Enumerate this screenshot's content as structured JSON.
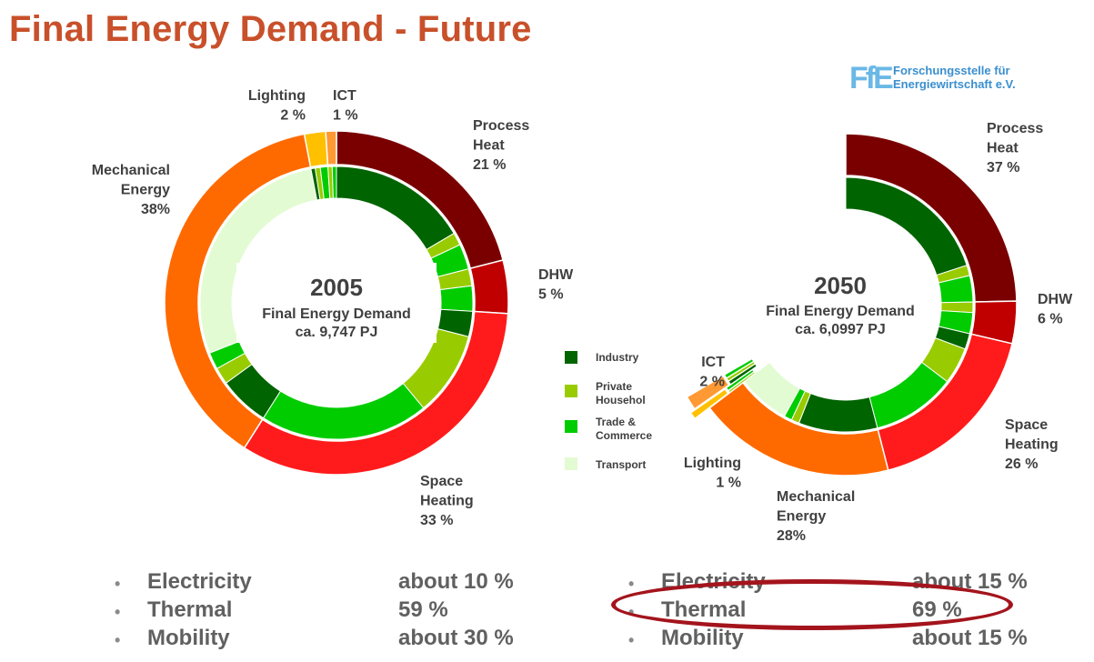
{
  "title": "Final Energy Demand - Future",
  "logo": {
    "mark": "FfE",
    "line1": "Forschungsstelle für",
    "line2": "Energiewirtschaft e.V."
  },
  "colors": {
    "process_heat": "#7a0000",
    "dhw": "#c00000",
    "space_heating": "#ff1b1b",
    "mechanical": "#ff6a00",
    "lighting": "#ffc000",
    "ict": "#ff9933",
    "industry": "#006400",
    "private": "#99cc00",
    "trade": "#00cc00",
    "transport": "#e3fbd3"
  },
  "legend": [
    {
      "label": "Industry",
      "color_key": "industry"
    },
    {
      "label": "Private\nHousehol",
      "color_key": "private"
    },
    {
      "label": "Trade &\nCommerce",
      "color_key": "trade"
    },
    {
      "label": "Transport",
      "color_key": "transport"
    }
  ],
  "chart_data": [
    {
      "type": "donut",
      "year": "2005",
      "center_line1": "Final Energy Demand",
      "center_line2": "ca. 9,747 PJ",
      "outer": [
        {
          "name": "Process Heat",
          "value": 21,
          "label": [
            "Process",
            "Heat",
            "21 %"
          ]
        },
        {
          "name": "DHW",
          "value": 5,
          "label": [
            "DHW",
            "5 %"
          ]
        },
        {
          "name": "Space Heating",
          "value": 33,
          "label": [
            "Space",
            "Heating",
            "33 %"
          ]
        },
        {
          "name": "Mechanical Energy",
          "value": 38,
          "label": [
            "Mechanical",
            "Energy",
            "38%"
          ]
        },
        {
          "name": "Lighting",
          "value": 2,
          "label": [
            "Lighting",
            "2 %"
          ]
        },
        {
          "name": "ICT",
          "value": 1,
          "label": [
            "ICT",
            "1 %"
          ]
        }
      ],
      "inner": [
        {
          "group": "Process Heat",
          "sector": "industry",
          "value": 16.5
        },
        {
          "group": "Process Heat",
          "sector": "private",
          "value": 1.5
        },
        {
          "group": "Process Heat",
          "sector": "trade",
          "value": 3
        },
        {
          "group": "DHW",
          "sector": "private",
          "value": 2
        },
        {
          "group": "DHW",
          "sector": "trade",
          "value": 3
        },
        {
          "group": "Space Heating",
          "sector": "industry",
          "value": 3
        },
        {
          "group": "Space Heating",
          "sector": "private",
          "value": 10
        },
        {
          "group": "Space Heating",
          "sector": "trade",
          "value": 20
        },
        {
          "group": "Mechanical Energy",
          "sector": "industry",
          "value": 6
        },
        {
          "group": "Mechanical Energy",
          "sector": "private",
          "value": 2
        },
        {
          "group": "Mechanical Energy",
          "sector": "trade",
          "value": 2
        },
        {
          "group": "Mechanical Energy",
          "sector": "transport",
          "value": 28
        },
        {
          "group": "Lighting",
          "sector": "industry",
          "value": 0.5
        },
        {
          "group": "Lighting",
          "sector": "private",
          "value": 0.6
        },
        {
          "group": "Lighting",
          "sector": "trade",
          "value": 0.9
        },
        {
          "group": "ICT",
          "sector": "private",
          "value": 0.5
        },
        {
          "group": "ICT",
          "sector": "trade",
          "value": 0.5
        }
      ]
    },
    {
      "type": "donut",
      "year": "2050",
      "center_line1": "Final Energy Demand",
      "center_line2": "ca. 6,0997 PJ",
      "outer": [
        {
          "name": "Process Heat",
          "value": 37,
          "label": [
            "Process",
            "Heat",
            "37 %"
          ]
        },
        {
          "name": "DHW",
          "value": 6,
          "label": [
            "DHW",
            "6 %"
          ]
        },
        {
          "name": "Space Heating",
          "value": 26,
          "label": [
            "Space",
            "Heating",
            "26 %"
          ]
        },
        {
          "name": "Mechanical Energy",
          "value": 28,
          "label": [
            "Mechanical",
            "Energy",
            "28%"
          ]
        },
        {
          "name": "Lighting",
          "value": 1,
          "label": [
            "Lighting",
            "1 %"
          ]
        },
        {
          "name": "ICT",
          "value": 2,
          "label": [
            "ICT",
            "2 %"
          ]
        }
      ],
      "inner": [
        {
          "group": "Process Heat",
          "sector": "industry",
          "value": 30
        },
        {
          "group": "Process Heat",
          "sector": "private",
          "value": 2
        },
        {
          "group": "Process Heat",
          "sector": "trade",
          "value": 5
        },
        {
          "group": "DHW",
          "sector": "private",
          "value": 2
        },
        {
          "group": "DHW",
          "sector": "trade",
          "value": 4
        },
        {
          "group": "Space Heating",
          "sector": "industry",
          "value": 3
        },
        {
          "group": "Space Heating",
          "sector": "private",
          "value": 7
        },
        {
          "group": "Space Heating",
          "sector": "trade",
          "value": 16
        },
        {
          "group": "Mechanical Energy",
          "sector": "industry",
          "value": 15
        },
        {
          "group": "Mechanical Energy",
          "sector": "private",
          "value": 1.5
        },
        {
          "group": "Mechanical Energy",
          "sector": "trade",
          "value": 1.5
        },
        {
          "group": "Mechanical Energy",
          "sector": "transport",
          "value": 10
        },
        {
          "group": "Lighting",
          "sector": "private",
          "value": 0.4
        },
        {
          "group": "Lighting",
          "sector": "trade",
          "value": 0.6
        },
        {
          "group": "ICT",
          "sector": "industry",
          "value": 0.7
        },
        {
          "group": "ICT",
          "sector": "private",
          "value": 0.6
        },
        {
          "group": "ICT",
          "sector": "trade",
          "value": 0.7
        }
      ]
    }
  ],
  "summary_2005": [
    {
      "bullet": "•",
      "name": "Electricity",
      "value": "about 10 %"
    },
    {
      "bullet": "•",
      "name": "Thermal",
      "value": "59 %"
    },
    {
      "bullet": "•",
      "name": "Mobility",
      "value": "about 30 %"
    }
  ],
  "summary_2050": [
    {
      "bullet": "•",
      "name": "Electricity",
      "value": "about 15 %"
    },
    {
      "bullet": "•",
      "name": "Thermal",
      "value": "69 %"
    },
    {
      "bullet": "•",
      "name": "Mobility",
      "value": "about 15 %"
    }
  ]
}
